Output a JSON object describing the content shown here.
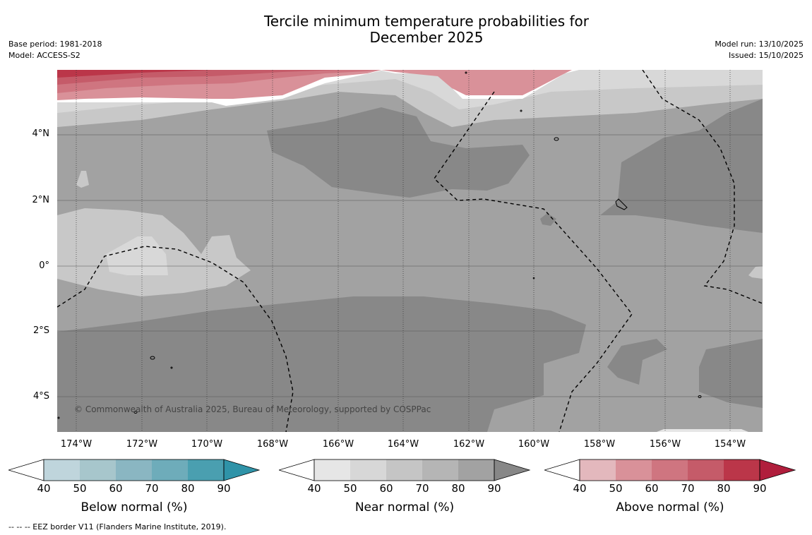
{
  "header": {
    "title_line1": "Tercile minimum temperature probabilities for",
    "title_line2": "December 2025",
    "base_period": "Base period: 1981-2018",
    "model": "Model: ACCESS-S2",
    "model_run": "Model run: 13/10/2025",
    "issued": "Issued: 15/10/2025"
  },
  "map": {
    "lat_labels": [
      "4°N",
      "2°N",
      "0°",
      "2°S",
      "4°S"
    ],
    "lon_labels": [
      "174°W",
      "172°W",
      "170°W",
      "168°W",
      "166°W",
      "164°W",
      "162°W",
      "160°W",
      "158°W",
      "156°W",
      "154°W"
    ],
    "copyright": "© Commonwealth of Australia 2025, Bureau of Meteorology, supported by COSPPac"
  },
  "legends": [
    {
      "title": "Below normal (%)",
      "ticks": [
        "40",
        "50",
        "60",
        "70",
        "80",
        "90"
      ],
      "colors": [
        "#bfd5dc",
        "#a7c6cc",
        "#8ab6c2",
        "#6eacba",
        "#4a9fb0",
        "#2f93a8"
      ]
    },
    {
      "title": "Near normal (%)",
      "ticks": [
        "40",
        "50",
        "60",
        "70",
        "80",
        "90"
      ],
      "colors": [
        "#e6e6e6",
        "#d7d7d7",
        "#c5c5c5",
        "#b5b5b5",
        "#a2a2a2",
        "#878787"
      ]
    },
    {
      "title": "Above normal (%)",
      "ticks": [
        "40",
        "50",
        "60",
        "70",
        "80",
        "90"
      ],
      "colors": [
        "#e3b8bd",
        "#d99199",
        "#cf7580",
        "#c55b69",
        "#bb3649",
        "#b01e3c"
      ]
    }
  ],
  "footer": {
    "eez_note": "--  --  -- EEZ border V11 (Flanders Marine Institute, 2019)."
  },
  "colors": {
    "grey_40": "#c8c8c8",
    "grey_50": "#a2a2a2",
    "grey_60": "#888888",
    "white_band": "#ffffff",
    "grey_light": "#d8d8d8"
  }
}
